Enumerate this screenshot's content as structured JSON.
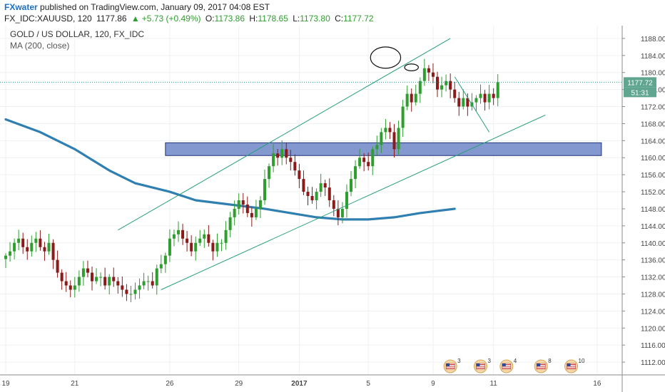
{
  "header": {
    "author": "FXwater",
    "published_text": "published on TradingView.com, January 09, 2017 04:08 EST",
    "symbol": "FX_IDC:XAUUSD, 120",
    "last": "1177.86",
    "change_arrow": "▲",
    "change": "+5.73 (+0.49%)",
    "o_label": "O:",
    "o_value": "1173.86",
    "h_label": "H:",
    "h_value": "1178.65",
    "l_label": "L:",
    "l_value": "1173.80",
    "c_label": "C:",
    "c_value": "1177.72"
  },
  "legend": {
    "title": "GOLD / US DOLLAR, 120, FX_IDC",
    "indicator": "MA (200, close)"
  },
  "price_tags": {
    "last": "1177.72",
    "countdown": "51:31"
  },
  "colors": {
    "up": "#2e9e2e",
    "down": "#8b1a1a",
    "ma": "#2f7fb0",
    "channel": "#26a07a",
    "zone_fill": "#6f86c8",
    "zone_stroke": "#20307a",
    "last_price": "#1f9c8c",
    "brand": "#1e6fc2"
  },
  "chart_data": {
    "type": "candlestick",
    "title": "GOLD / US DOLLAR, 120, FX_IDC",
    "indicator": "MA (200, close)",
    "ylim": [
      1109,
      1191
    ],
    "y_ticks": [
      "1112.00",
      "1116.00",
      "1120.00",
      "1124.00",
      "1128.00",
      "1132.00",
      "1136.00",
      "1140.00",
      "1144.00",
      "1148.00",
      "1152.00",
      "1156.00",
      "1160.00",
      "1164.00",
      "1168.00",
      "1172.00",
      "1176.00",
      "1180.00",
      "1184.00",
      "1188.00"
    ],
    "x_ticks": [
      {
        "label": "19",
        "bar": 0
      },
      {
        "label": "21",
        "bar": 16
      },
      {
        "label": "26",
        "bar": 38
      },
      {
        "label": "29",
        "bar": 54
      },
      {
        "label": "2017",
        "bar": 68,
        "bold": true
      },
      {
        "label": "5",
        "bar": 84
      },
      {
        "label": "9",
        "bar": 99
      },
      {
        "label": "11",
        "bar": 113
      },
      {
        "label": "16",
        "bar": 137
      }
    ],
    "last_price": 1177.72,
    "close": [
      1137,
      1138,
      1140,
      1141,
      1139,
      1138,
      1140,
      1141,
      1139,
      1138,
      1140,
      1136,
      1133,
      1131,
      1130,
      1129,
      1130,
      1132,
      1134,
      1133,
      1131,
      1132,
      1132,
      1130,
      1132,
      1131,
      1130,
      1129,
      1128,
      1128,
      1129,
      1130,
      1131,
      1131,
      1130,
      1134,
      1135,
      1137,
      1141,
      1142,
      1143,
      1141,
      1140,
      1138,
      1140,
      1141,
      1142,
      1140,
      1138,
      1140,
      1140,
      1143,
      1146,
      1148,
      1150,
      1149,
      1147,
      1146,
      1148,
      1150,
      1155,
      1158,
      1161,
      1160,
      1162,
      1160,
      1159,
      1157,
      1155,
      1152,
      1151,
      1150,
      1152,
      1154,
      1153,
      1150,
      1148,
      1146,
      1148,
      1152,
      1155,
      1158,
      1160,
      1159,
      1158,
      1162,
      1163,
      1166,
      1167,
      1166,
      1162,
      1167,
      1172,
      1175,
      1173,
      1175,
      1178,
      1181,
      1180,
      1179,
      1176,
      1177,
      1178,
      1176,
      1174,
      1172,
      1174,
      1172,
      1173,
      1174,
      1175,
      1173,
      1175,
      1174,
      1177.7
    ],
    "ma200": [
      [
        0,
        1169
      ],
      [
        8,
        1166
      ],
      [
        16,
        1162
      ],
      [
        24,
        1157
      ],
      [
        30,
        1154
      ],
      [
        38,
        1152
      ],
      [
        44,
        1150
      ],
      [
        52,
        1149
      ],
      [
        60,
        1148
      ],
      [
        66,
        1147
      ],
      [
        72,
        1146
      ],
      [
        78,
        1145.5
      ],
      [
        84,
        1145.5
      ],
      [
        90,
        1146
      ],
      [
        96,
        1147
      ],
      [
        100,
        1147.5
      ],
      [
        104,
        1148
      ]
    ],
    "channel_lines": [
      {
        "name": "upper",
        "from": [
          26,
          1143
        ],
        "to": [
          103,
          1188
        ]
      },
      {
        "name": "lower",
        "from": [
          36,
          1129
        ],
        "to": [
          125,
          1170
        ]
      }
    ],
    "projection": {
      "from": [
        104,
        1179
      ],
      "to": [
        112,
        1166
      ]
    },
    "zone": {
      "bar_from": 37,
      "bar_to": 138,
      "price_from": 1160.5,
      "price_to": 1163.5
    },
    "ellipses": [
      {
        "center": [
          88,
          1183.5
        ],
        "rx_bars": 3.5,
        "ry_price": 2.5
      },
      {
        "center": [
          94,
          1181.2
        ],
        "rx_bars": 1.6,
        "ry_price": 0.8
      }
    ],
    "events": [
      {
        "bar": 103,
        "count": "3"
      },
      {
        "bar": 110,
        "count": "3"
      },
      {
        "bar": 116,
        "count": "4"
      },
      {
        "bar": 124,
        "count": "8"
      },
      {
        "bar": 131,
        "count": "10"
      }
    ]
  }
}
